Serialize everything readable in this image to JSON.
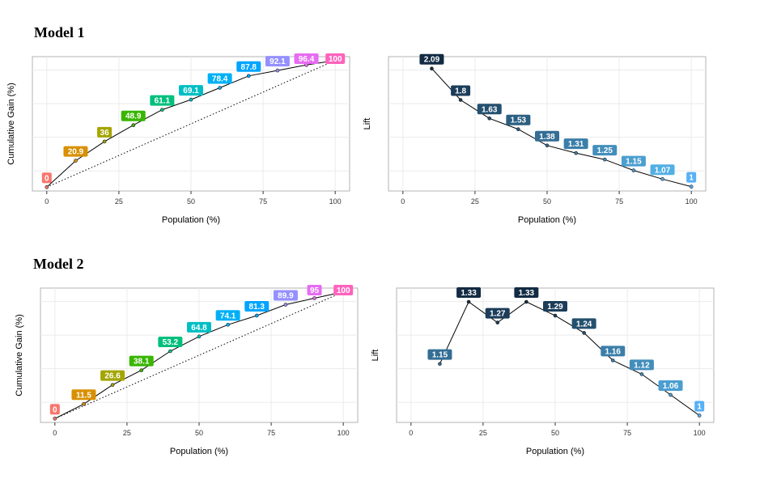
{
  "sections": [
    {
      "title": "Model 1"
    },
    {
      "title": "Model 2"
    }
  ],
  "chart_data": [
    {
      "id": "model1-gain",
      "type": "line",
      "title": "",
      "xlabel": "Population (%)",
      "ylabel": "Cumulative Gain (%)",
      "xlim": [
        -5,
        105
      ],
      "ylim": [
        -3,
        103
      ],
      "xticks": [
        0,
        25,
        50,
        75,
        100
      ],
      "x": [
        0,
        10,
        20,
        30,
        40,
        50,
        60,
        70,
        80,
        90,
        100
      ],
      "values": [
        0,
        20.9,
        36,
        48.9,
        61.1,
        69.1,
        78.4,
        87.8,
        92.1,
        96.4,
        100
      ],
      "labels": [
        "0",
        "20.9",
        "36",
        "48.9",
        "61.1",
        "69.1",
        "78.4",
        "87.8",
        "92.1",
        "96.4",
        "100"
      ],
      "reference": "diagonal",
      "label_colors": [
        "#F8766D",
        "#D89000",
        "#A3A500",
        "#39B600",
        "#00BF7D",
        "#00BFC4",
        "#00B0F6",
        "#00A5FF",
        "#9590FF",
        "#E76BF3",
        "#FF62BC"
      ]
    },
    {
      "id": "model1-lift",
      "type": "line",
      "title": "",
      "xlabel": "Population (%)",
      "ylabel": "Lift",
      "xlim": [
        -5,
        105
      ],
      "ylim": [
        0.96,
        2.2
      ],
      "xticks": [
        0,
        25,
        50,
        75,
        100
      ],
      "x": [
        10,
        20,
        30,
        40,
        50,
        60,
        70,
        80,
        90,
        100
      ],
      "values": [
        2.09,
        1.8,
        1.63,
        1.53,
        1.38,
        1.31,
        1.25,
        1.15,
        1.07,
        1
      ],
      "labels": [
        "2.09",
        "1.8",
        "1.63",
        "1.53",
        "1.38",
        "1.31",
        "1.25",
        "1.15",
        "1.07",
        "1"
      ],
      "label_colors": [
        "#132B43",
        "#1C3D5A",
        "#24506F",
        "#2B5F82",
        "#346E95",
        "#3B7EA9",
        "#438EBC",
        "#4B9ED0",
        "#52AFE3",
        "#56B1F7"
      ]
    },
    {
      "id": "model2-gain",
      "type": "line",
      "title": "",
      "xlabel": "Population (%)",
      "ylabel": "Cumulative Gain (%)",
      "xlim": [
        -5,
        105
      ],
      "ylim": [
        -3,
        103
      ],
      "xticks": [
        0,
        25,
        50,
        75,
        100
      ],
      "x": [
        0,
        10,
        20,
        30,
        40,
        50,
        60,
        70,
        80,
        90,
        100
      ],
      "values": [
        0,
        11.5,
        26.6,
        38.1,
        53.2,
        64.8,
        74.1,
        81.3,
        89.9,
        95,
        100
      ],
      "labels": [
        "0",
        "11.5",
        "26.6",
        "38.1",
        "53.2",
        "64.8",
        "74.1",
        "81.3",
        "89.9",
        "95",
        "100"
      ],
      "reference": "diagonal",
      "label_colors": [
        "#F8766D",
        "#D89000",
        "#A3A500",
        "#39B600",
        "#00BF7D",
        "#00BFC4",
        "#00B0F6",
        "#00A5FF",
        "#9590FF",
        "#E76BF3",
        "#FF62BC"
      ]
    },
    {
      "id": "model2-lift",
      "type": "line",
      "title": "",
      "xlabel": "Population (%)",
      "ylabel": "Lift",
      "xlim": [
        -5,
        105
      ],
      "ylim": [
        0.98,
        1.37
      ],
      "xticks": [
        0,
        25,
        50,
        75,
        100
      ],
      "x": [
        10,
        20,
        30,
        40,
        50,
        60,
        70,
        80,
        90,
        100
      ],
      "values": [
        1.15,
        1.33,
        1.27,
        1.33,
        1.29,
        1.24,
        1.16,
        1.12,
        1.06,
        1
      ],
      "labels": [
        "1.15",
        "1.33",
        "1.27",
        "1.33",
        "1.29",
        "1.24",
        "1.16",
        "1.12",
        "1.06",
        "1"
      ],
      "label_colors": [
        "#346E95",
        "#132B43",
        "#1C3D5A",
        "#132B43",
        "#1C3D5A",
        "#24506F",
        "#3B7EA9",
        "#438EBC",
        "#4B9ED0",
        "#56B1F7"
      ]
    }
  ]
}
